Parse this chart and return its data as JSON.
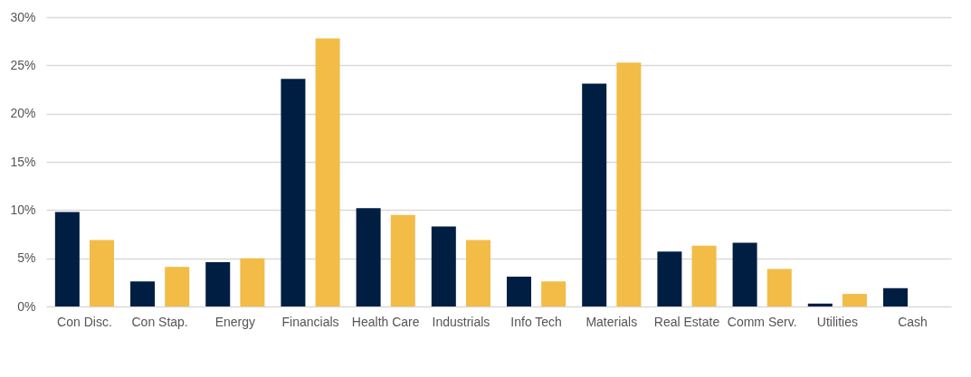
{
  "chart_data": {
    "type": "bar",
    "categories": [
      "Con Disc.",
      "Con Stap.",
      "Energy",
      "Financials",
      "Health Care",
      "Industrials",
      "Info Tech",
      "Materials",
      "Real Estate",
      "Comm Serv.",
      "Utilities",
      "Cash"
    ],
    "series": [
      {
        "color": "#001e42",
        "values": [
          9.8,
          2.6,
          4.6,
          23.6,
          10.2,
          8.3,
          3.1,
          23.1,
          5.7,
          6.6,
          0.3,
          1.9
        ]
      },
      {
        "color": "#f2bc47",
        "values": [
          6.9,
          4.1,
          5.0,
          27.8,
          9.5,
          6.9,
          2.6,
          25.3,
          6.3,
          3.9,
          1.3,
          null
        ]
      }
    ],
    "ylim": [
      0,
      30
    ],
    "yticks": [
      {
        "value": 0,
        "label": "0%"
      },
      {
        "value": 5,
        "label": "5%"
      },
      {
        "value": 10,
        "label": "10%"
      },
      {
        "value": 15,
        "label": "15%"
      },
      {
        "value": 20,
        "label": "20%"
      },
      {
        "value": 25,
        "label": "25%"
      },
      {
        "value": 30,
        "label": "30%"
      }
    ],
    "grid": "y"
  }
}
